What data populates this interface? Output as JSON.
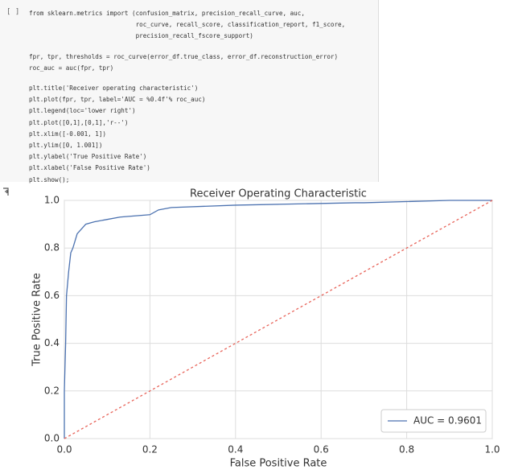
{
  "cell": {
    "prompt": "[ ]",
    "blocks": [
      [
        "from sklearn.metrics import (confusion_matrix, precision_recall_curve, auc,",
        "                             roc_curve, recall_score, classification_report, f1_score,",
        "                             precision_recall_fscore_support)"
      ],
      [
        "fpr, tpr, thresholds = roc_curve(error_df.true_class, error_df.reconstruction_error)",
        "roc_auc = auc(fpr, tpr)"
      ],
      [
        "plt.title('Receiver operating characteristic')",
        "plt.plot(fpr, tpr, label='AUC = %0.4f'% roc_auc)",
        "plt.legend(loc='lower right')",
        "plt.plot([0,1],[0,1],'r--')",
        "plt.xlim([-0.001, 1])",
        "plt.ylim([0, 1.001])",
        "plt.ylabel('True Positive Rate')",
        "plt.xlabel('False Positive Rate')",
        "plt.show();"
      ]
    ]
  },
  "chart_data": {
    "type": "line",
    "title": "Receiver Operating Characteristic",
    "x_label": "False Positive Rate",
    "y_label": "True Positive Rate",
    "xlim": [
      0,
      1
    ],
    "ylim": [
      0,
      1
    ],
    "xticks": [
      {
        "value": 0,
        "label": "0.0"
      },
      0.2,
      0.4,
      0.6,
      0.8,
      {
        "value": 1,
        "label": "1.0"
      }
    ],
    "yticks": [
      {
        "value": 0,
        "label": "0.0"
      },
      0.2,
      0.4,
      0.6,
      0.8,
      {
        "value": 1,
        "label": "1.0"
      }
    ],
    "grid": true,
    "legend": "lower right",
    "series": [
      {
        "name": "AUC = 0.9601",
        "color": "#4c72b0",
        "style": "solid",
        "x": [
          0,
          0,
          0.003,
          0.005,
          0.01,
          0.015,
          0.02,
          0.025,
          0.03,
          0.04,
          0.05,
          0.07,
          0.1,
          0.13,
          0.2,
          0.22,
          0.25,
          0.4,
          0.68,
          0.7,
          0.9,
          1
        ],
        "values": [
          0,
          0.2,
          0.4,
          0.6,
          0.7,
          0.78,
          0.8,
          0.83,
          0.86,
          0.88,
          0.9,
          0.91,
          0.92,
          0.93,
          0.94,
          0.96,
          0.97,
          0.98,
          0.99,
          0.99,
          1,
          1
        ]
      },
      {
        "color": "#e8645a",
        "style": "dashed",
        "x": [
          0,
          1
        ],
        "values": [
          0,
          1
        ]
      }
    ]
  }
}
